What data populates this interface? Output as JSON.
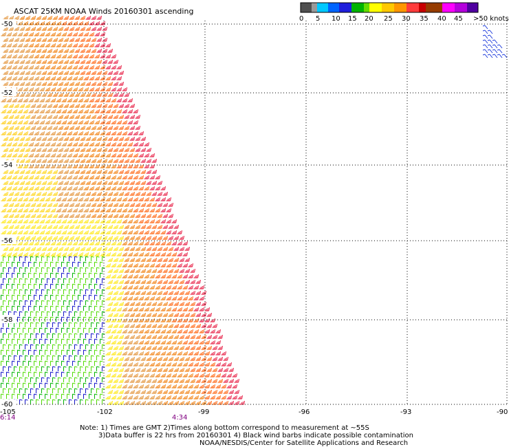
{
  "title": "ASCAT 25KM NOAA Winds 20160301 ascending",
  "legend": {
    "colors": [
      "#505050",
      "#999999",
      "#00c8ff",
      "#0064ff",
      "#1e1edc",
      "#00b400",
      "#64dc00",
      "#ffff00",
      "#ffc800",
      "#ff9600",
      "#ff3c3c",
      "#c80000",
      "#963c00",
      "#ff00ff",
      "#b400dc",
      "#5000a0"
    ],
    "labels": [
      "0",
      "5",
      "10",
      "15",
      "20",
      "25",
      "30",
      "35",
      "40",
      "45",
      ">50 knots"
    ]
  },
  "lat_labels": [
    "-50",
    "-52",
    "-54",
    "-56",
    "-58",
    "-60"
  ],
  "lon_labels": [
    "-105",
    "-102",
    "-99",
    "-96",
    "-93",
    "-90"
  ],
  "time_labels": [
    "6:14",
    "4:34"
  ],
  "note_lines": [
    "Note: 1) Times are GMT 2)Times along bottom correspond to measurement at ~55S",
    "3)Data buffer is 22 hrs from 20160301 4) Black wind barbs indicate possible contamination",
    "NOAA/NESDIS/Center for Satellite Applications and Research"
  ]
}
